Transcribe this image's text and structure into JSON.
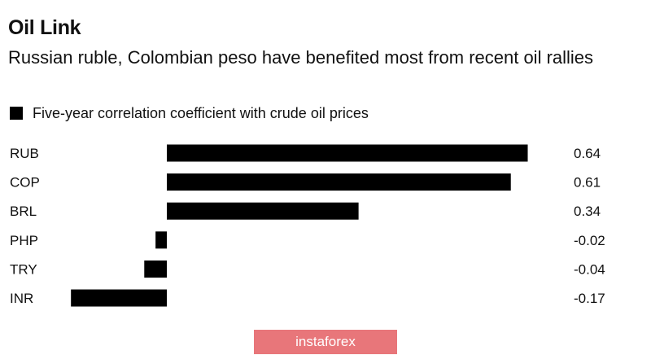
{
  "title": "Oil Link",
  "subtitle": "Russian ruble, Colombian peso have benefited most from recent oil rallies",
  "legend": {
    "label": "Five-year correlation coefficient with crude oil prices",
    "color": "#000000"
  },
  "watermark": "instaforex",
  "chart_data": {
    "type": "bar",
    "orientation": "horizontal",
    "categories": [
      "RUB",
      "COP",
      "BRL",
      "PHP",
      "TRY",
      "INR"
    ],
    "series": [
      {
        "name": "Five-year correlation coefficient with crude oil prices",
        "values": [
          0.64,
          0.61,
          0.34,
          -0.02,
          -0.04,
          -0.17
        ]
      }
    ],
    "value_labels": [
      "0.64",
      "0.61",
      "0.34",
      "-0.02",
      "-0.04",
      "-0.17"
    ],
    "xlim": [
      -0.17,
      0.64
    ],
    "grid": false,
    "legend_position": "top-left",
    "bar_color": "#000000"
  }
}
